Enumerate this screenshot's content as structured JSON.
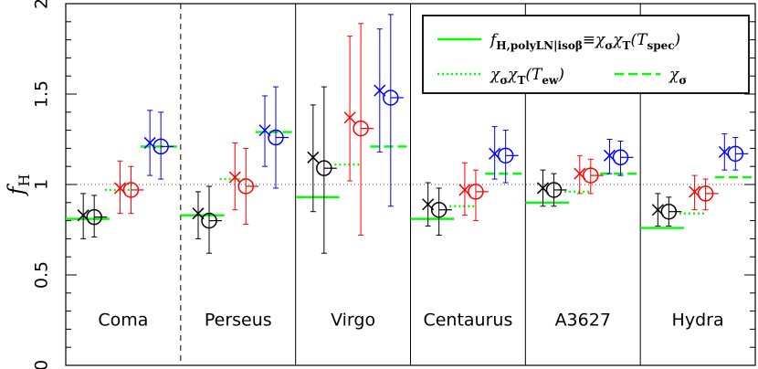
{
  "chart_data": {
    "type": "scatter",
    "ylabel": "f",
    "ylabel_sub": "H",
    "ylim": [
      0,
      2
    ],
    "yticks": [
      "0",
      "0.5",
      "1",
      "1.5",
      "2"
    ],
    "reference_line": 1.0,
    "colors": {
      "black": "#000000",
      "red": "#ff0000",
      "blue": "#0000ff",
      "green": "#00ff00"
    },
    "legend": {
      "position": "top-right",
      "entries": [
        {
          "style": "solid",
          "label": "f",
          "label_sub": "H,polyLN|isoβ",
          "label_rest": "≡χ",
          "label_rest_sub": "σ",
          "label_rest2": "χ",
          "label_rest2_sub": "T",
          "label_rest3": "(T",
          "label_rest3_sub": "spec",
          "label_rest4": ")"
        },
        {
          "style": "dotted",
          "label": "χ",
          "label_sub": "σ",
          "label_rest": "χ",
          "label_rest_sub": "T",
          "label_rest2": "(T",
          "label_rest2_sub": "ew",
          "label_rest3": ")"
        },
        {
          "style": "dashed",
          "label": "χ",
          "label_sub": "σ"
        }
      ]
    },
    "clusters": [
      {
        "name": "Coma",
        "points": [
          {
            "color": "black",
            "cross": 0.83,
            "cross_err": [
              0.7,
              0.95
            ],
            "circle": 0.82,
            "circle_err": [
              0.71,
              0.94
            ]
          },
          {
            "color": "red",
            "cross": 0.98,
            "cross_err": [
              0.84,
              1.13
            ],
            "circle": 0.97,
            "circle_err": [
              0.84,
              1.1
            ]
          },
          {
            "color": "blue",
            "cross": 1.23,
            "cross_err": [
              1.05,
              1.41
            ],
            "circle": 1.21,
            "circle_err": [
              1.03,
              1.4
            ]
          }
        ],
        "green": {
          "solid": 0.81,
          "dotted": 0.97,
          "dashed": 1.21
        }
      },
      {
        "name": "Perseus",
        "points": [
          {
            "color": "black",
            "cross": 0.84,
            "cross_err": [
              0.7,
              0.96
            ],
            "circle": 0.8,
            "circle_err": [
              0.62,
              0.99
            ]
          },
          {
            "color": "red",
            "cross": 1.04,
            "cross_err": [
              0.86,
              1.23
            ],
            "circle": 0.99,
            "circle_err": [
              0.78,
              1.2
            ]
          },
          {
            "color": "blue",
            "cross": 1.3,
            "cross_err": [
              1.1,
              1.49
            ],
            "circle": 1.26,
            "circle_err": [
              0.98,
              1.54
            ]
          }
        ],
        "green": {
          "solid": 0.83,
          "dotted": 1.03,
          "dashed": 1.29
        }
      },
      {
        "name": "Virgo",
        "points": [
          {
            "color": "black",
            "cross": 1.15,
            "cross_err": [
              0.85,
              1.44
            ],
            "circle": 1.09,
            "circle_err": [
              0.62,
              1.54
            ]
          },
          {
            "color": "red",
            "cross": 1.37,
            "cross_err": [
              1.02,
              1.82
            ],
            "circle": 1.31,
            "circle_err": [
              0.72,
              1.89
            ]
          },
          {
            "color": "blue",
            "cross": 1.52,
            "cross_err": [
              1.18,
              1.86
            ],
            "circle": 1.48,
            "circle_err": [
              0.88,
              1.94
            ]
          }
        ],
        "green": {
          "solid": 0.93,
          "dotted": 1.11,
          "dashed": 1.21
        }
      },
      {
        "name": "Centaurus",
        "points": [
          {
            "color": "black",
            "cross": 0.89,
            "cross_err": [
              0.77,
              1.01
            ],
            "circle": 0.86,
            "circle_err": [
              0.72,
              0.98
            ]
          },
          {
            "color": "red",
            "cross": 0.97,
            "cross_err": [
              0.83,
              1.12
            ],
            "circle": 0.96,
            "circle_err": [
              0.8,
              1.08
            ]
          },
          {
            "color": "blue",
            "cross": 1.17,
            "cross_err": [
              1.03,
              1.32
            ],
            "circle": 1.16,
            "circle_err": [
              1.01,
              1.3
            ]
          }
        ],
        "green": {
          "solid": 0.81,
          "dotted": 0.88,
          "dashed": 1.06
        }
      },
      {
        "name": "A3627",
        "points": [
          {
            "color": "black",
            "cross": 0.98,
            "cross_err": [
              0.88,
              1.08
            ],
            "circle": 0.97,
            "circle_err": [
              0.88,
              1.06
            ]
          },
          {
            "color": "red",
            "cross": 1.06,
            "cross_err": [
              0.95,
              1.16
            ],
            "circle": 1.05,
            "circle_err": [
              0.95,
              1.14
            ]
          },
          {
            "color": "blue",
            "cross": 1.16,
            "cross_err": [
              1.06,
              1.25
            ],
            "circle": 1.15,
            "circle_err": [
              1.05,
              1.24
            ]
          }
        ],
        "green": {
          "solid": 0.9,
          "dotted": 0.96,
          "dashed": 1.06
        }
      },
      {
        "name": "Hydra",
        "points": [
          {
            "color": "black",
            "cross": 0.86,
            "cross_err": [
              0.77,
              0.95
            ],
            "circle": 0.85,
            "circle_err": [
              0.77,
              0.93
            ]
          },
          {
            "color": "red",
            "cross": 0.96,
            "cross_err": [
              0.86,
              1.05
            ],
            "circle": 0.95,
            "circle_err": [
              0.86,
              1.03
            ]
          },
          {
            "color": "blue",
            "cross": 1.18,
            "cross_err": [
              1.08,
              1.28
            ],
            "circle": 1.17,
            "circle_err": [
              1.08,
              1.26
            ]
          }
        ],
        "green": {
          "solid": 0.76,
          "dotted": 0.84,
          "dashed": 1.04
        }
      }
    ]
  }
}
